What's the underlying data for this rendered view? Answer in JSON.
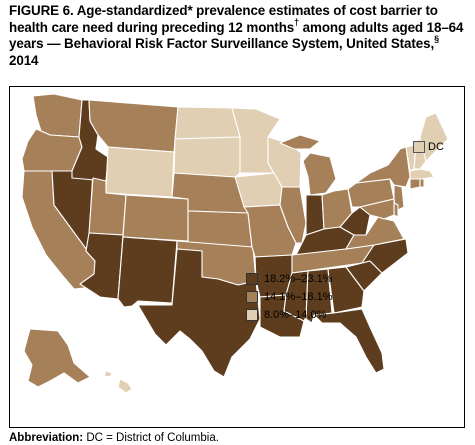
{
  "figure": {
    "label": "FIGURE 6.",
    "title_part1": "Age-standardized* prevalence estimates of cost barrier to health care need during preceding 12 months",
    "dagger": "†",
    "title_part2": " among adults aged 18–64 years — Behavioral Risk Factor Surveillance System, United States,",
    "section_mark": "§",
    "title_part3": " 2014"
  },
  "colors": {
    "high": "#5e3d1e",
    "mid": "#a68058",
    "low": "#e1cfb3"
  },
  "legend": {
    "items": [
      {
        "label": "18.2%–23.1%",
        "class": "high",
        "color": "#5e3d1e"
      },
      {
        "label": "14.1%–18.1%",
        "class": "mid",
        "color": "#a68058"
      },
      {
        "label": "8.0%–14.0%",
        "class": "low",
        "color": "#e1cfb3"
      }
    ]
  },
  "dc_inset": {
    "label": "DC",
    "class": "low"
  },
  "states": {
    "WA": "mid",
    "OR": "mid",
    "CA": "mid",
    "NV": "high",
    "ID": "high",
    "MT": "mid",
    "WY": "low",
    "UT": "mid",
    "AZ": "high",
    "CO": "mid",
    "NM": "high",
    "ND": "low",
    "SD": "low",
    "NE": "mid",
    "KS": "mid",
    "OK": "mid",
    "TX": "high",
    "MN": "low",
    "IA": "low",
    "MO": "mid",
    "AR": "high",
    "LA": "high",
    "WI": "low",
    "IL": "mid",
    "MI": "mid",
    "IN": "high",
    "OH": "mid",
    "KY": "high",
    "TN": "mid",
    "MS": "high",
    "AL": "high",
    "GA": "high",
    "FL": "high",
    "SC": "high",
    "NC": "high",
    "VA": "mid",
    "WV": "high",
    "PA": "mid",
    "NY": "mid",
    "VT": "low",
    "NH": "low",
    "ME": "low",
    "MA": "low",
    "RI": "mid",
    "CT": "mid",
    "NJ": "mid",
    "DE": "mid",
    "MD": "mid",
    "AK": "mid",
    "HI": "low"
  },
  "footnote": {
    "abbreviation_label": "Abbreviation:",
    "abbreviation_text": " DC = District of Columbia."
  }
}
